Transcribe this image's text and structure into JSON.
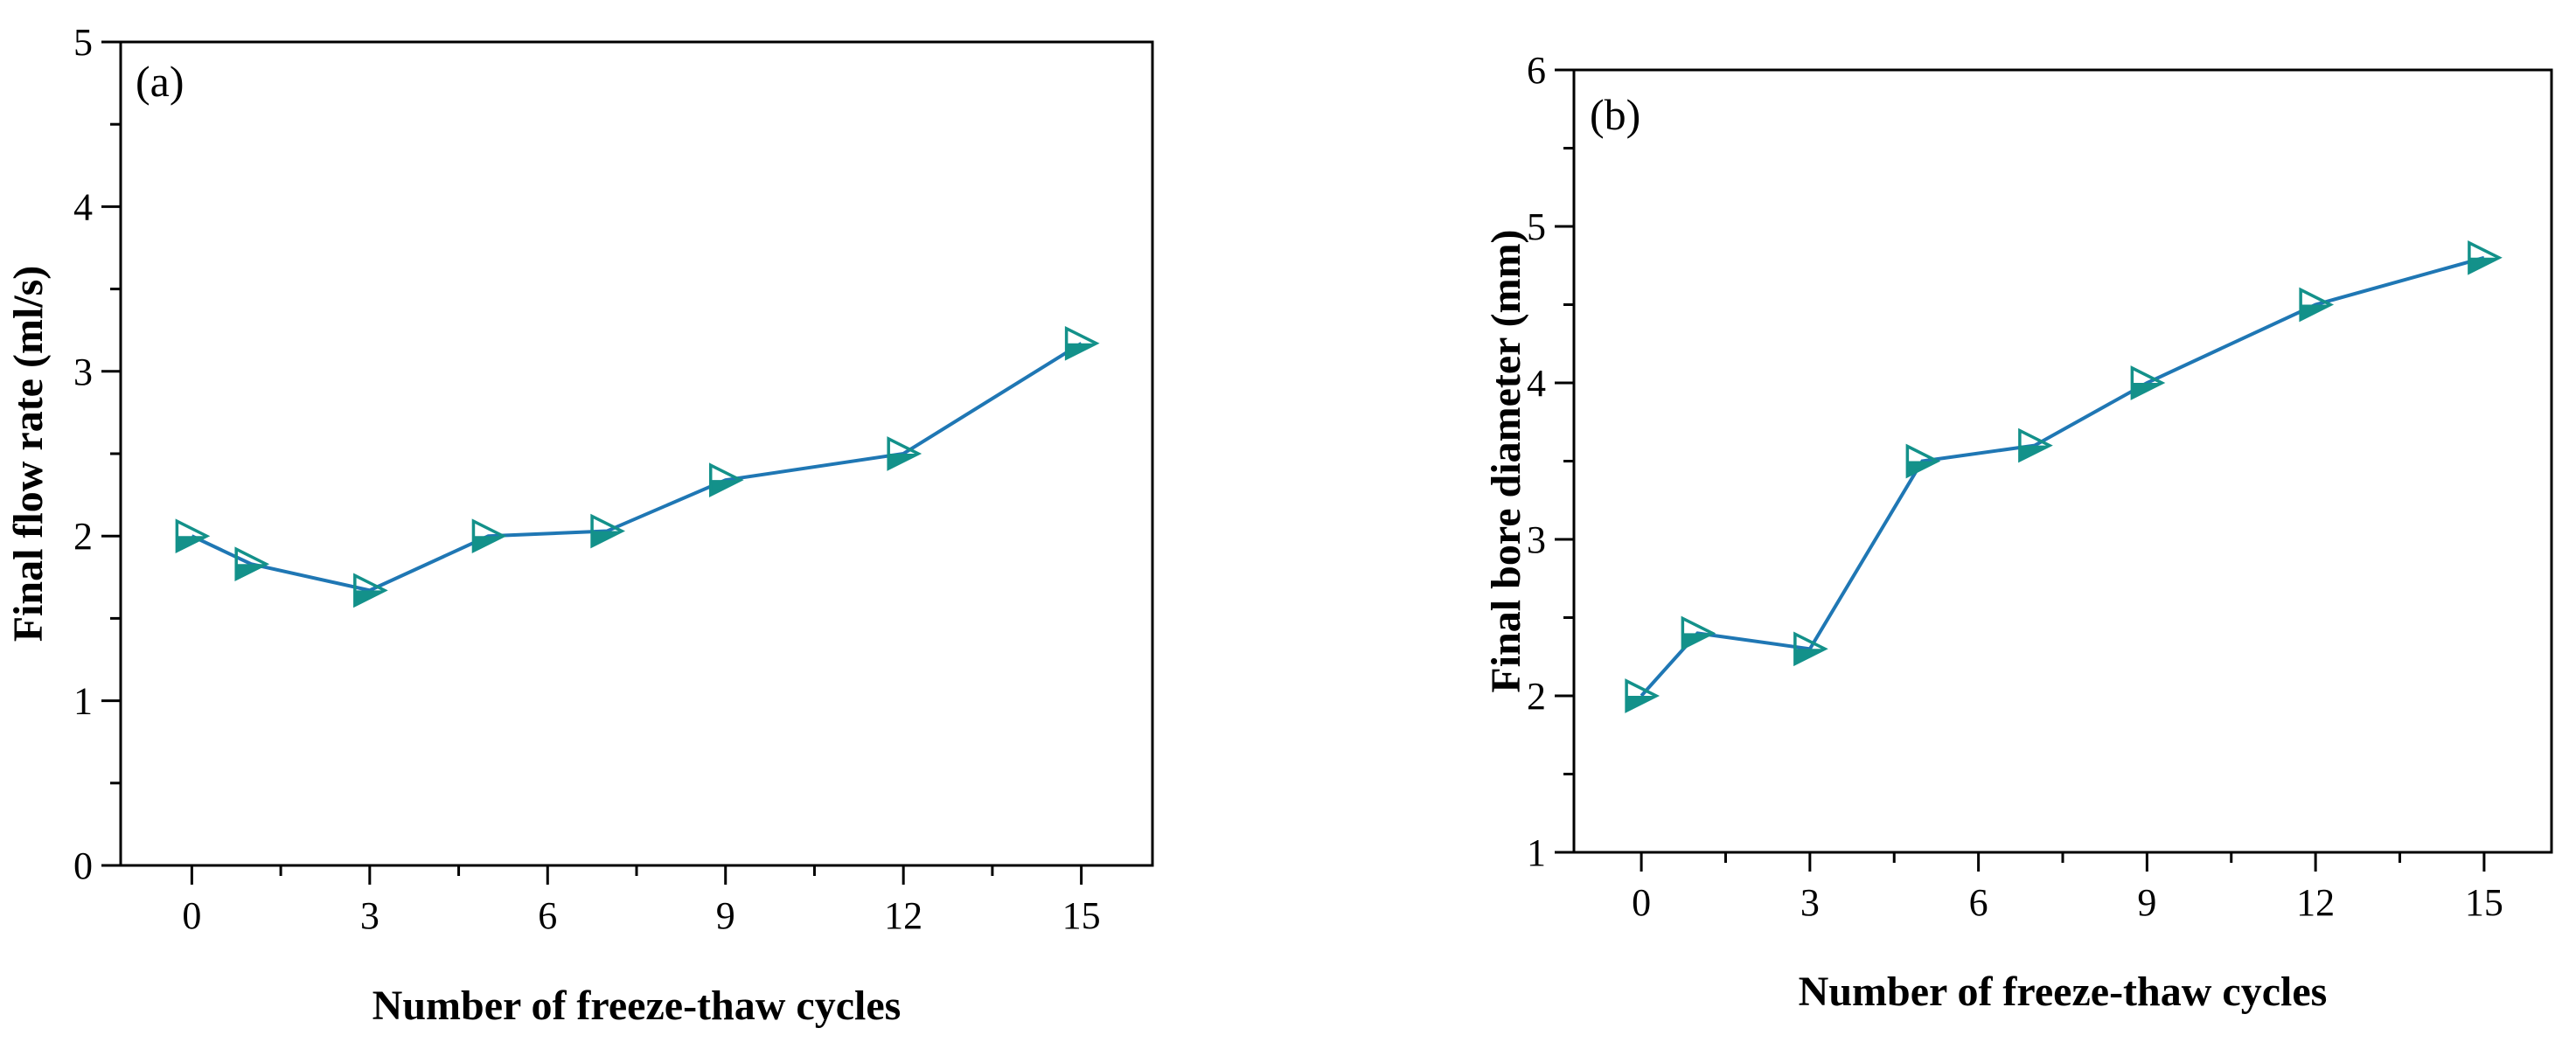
{
  "chart_data": [
    {
      "type": "line",
      "panel_label": "(a)",
      "xlabel": "Number of freeze-thaw cycles",
      "ylabel": "Final flow rate (ml/s)",
      "xlim": [
        -1.2,
        16.2
      ],
      "ylim": [
        0,
        5
      ],
      "xticks": [
        0,
        3,
        6,
        9,
        12,
        15
      ],
      "xtick_labels": [
        "0",
        "3",
        "6",
        "9",
        "12",
        "15"
      ],
      "yticks": [
        0,
        1,
        2,
        3,
        4,
        5
      ],
      "ytick_labels": [
        "0",
        "1",
        "2",
        "3",
        "4",
        "5"
      ],
      "series": [
        {
          "name": "Final flow rate",
          "x": [
            0,
            1,
            3,
            5,
            7,
            9,
            12,
            15
          ],
          "values": [
            2.0,
            1.83,
            1.67,
            2.0,
            2.03,
            2.34,
            2.5,
            3.17
          ],
          "line_color": "#1f77b4",
          "marker_color": "#13918a"
        }
      ]
    },
    {
      "type": "line",
      "panel_label": "(b)",
      "xlabel": "Number of freeze-thaw cycles",
      "ylabel": "Final bore diameter (mm)",
      "xlim": [
        -1.2,
        16.2
      ],
      "ylim": [
        1,
        6
      ],
      "xticks": [
        0,
        3,
        6,
        9,
        12,
        15
      ],
      "xtick_labels": [
        "0",
        "3",
        "6",
        "9",
        "12",
        "15"
      ],
      "yticks": [
        1,
        2,
        3,
        4,
        5,
        6
      ],
      "ytick_labels": [
        "1",
        "2",
        "3",
        "4",
        "5",
        "6"
      ],
      "series": [
        {
          "name": "Final bore diameter",
          "x": [
            0,
            1,
            3,
            5,
            7,
            9,
            12,
            15
          ],
          "values": [
            2.0,
            2.4,
            2.3,
            3.5,
            3.6,
            4.0,
            4.5,
            4.8
          ],
          "line_color": "#1f77b4",
          "marker_color": "#13918a"
        }
      ]
    }
  ]
}
